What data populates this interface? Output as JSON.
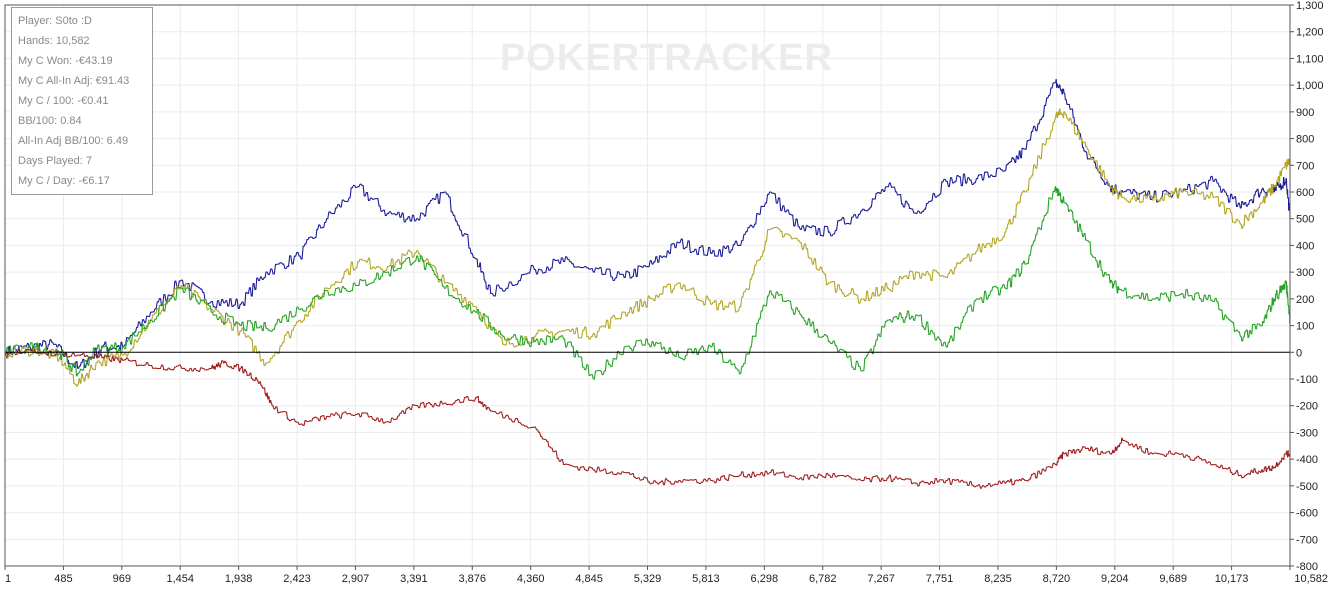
{
  "watermark": "POKERTRACKER",
  "stats": {
    "player": "Player: S0to :D",
    "hands": "Hands: 10,582",
    "won": "My C Won: -€43.19",
    "allin_adj": "My C All-In Adj: €91.43",
    "per100": "My C / 100: -€0.41",
    "bb100": "BB/100: 0.84",
    "allin_bb100": "All-In Adj BB/100: 6.49",
    "days": "Days Played: 7",
    "per_day": "My C / Day: -€6.17"
  },
  "colors": {
    "blue": "#1c1c9a",
    "gold": "#b3a624",
    "green": "#26a326",
    "red": "#a01e1e",
    "grid": "#ebebeb",
    "zero": "#000000"
  },
  "chart_data": {
    "type": "line",
    "xlim": [
      1,
      10582
    ],
    "ylim": [
      -800,
      1300
    ],
    "x_ticks": [
      "1",
      "485",
      "969",
      "1,454",
      "1,938",
      "2,423",
      "2,907",
      "3,391",
      "3,876",
      "4,360",
      "4,845",
      "5,329",
      "5,813",
      "6,298",
      "6,782",
      "7,267",
      "7,751",
      "8,235",
      "8,720",
      "9,204",
      "9,689",
      "10,173",
      "10,582"
    ],
    "y_ticks": [
      "1,300",
      "1,200",
      "1,100",
      "1,000",
      "900",
      "800",
      "700",
      "600",
      "500",
      "400",
      "300",
      "200",
      "100",
      "0",
      "-100",
      "-200",
      "-300",
      "-400",
      "-500",
      "-600",
      "-700",
      "-800"
    ],
    "grid": true,
    "series": [
      {
        "color": "blue",
        "x": [
          1,
          200,
          400,
          600,
          800,
          969,
          1200,
          1454,
          1700,
          1938,
          2150,
          2423,
          2650,
          2907,
          3150,
          3391,
          3620,
          3876,
          4000,
          4360,
          4600,
          4845,
          5100,
          5329,
          5550,
          5813,
          6050,
          6298,
          6550,
          6782,
          7050,
          7267,
          7500,
          7751,
          8000,
          8235,
          8400,
          8650,
          8720,
          8900,
          9100,
          9204,
          9450,
          9689,
          9950,
          10173,
          10350,
          10450,
          10550,
          10582
        ],
        "y": [
          0,
          20,
          30,
          -60,
          20,
          20,
          150,
          270,
          190,
          180,
          300,
          360,
          500,
          620,
          520,
          500,
          600,
          350,
          220,
          310,
          340,
          300,
          280,
          330,
          410,
          370,
          400,
          600,
          460,
          450,
          530,
          620,
          520,
          640,
          650,
          680,
          760,
          1010,
          970,
          750,
          620,
          600,
          580,
          600,
          640,
          540,
          610,
          600,
          650,
          500
        ]
      },
      {
        "color": "gold",
        "x": [
          1,
          250,
          450,
          600,
          750,
          969,
          1200,
          1454,
          1700,
          1938,
          2150,
          2423,
          2650,
          2907,
          3150,
          3391,
          3620,
          3876,
          4100,
          4360,
          4600,
          4845,
          5100,
          5329,
          5550,
          5813,
          6050,
          6298,
          6550,
          6782,
          7050,
          7267,
          7500,
          7751,
          8000,
          8235,
          8400,
          8650,
          8720,
          8900,
          9100,
          9204,
          9450,
          9689,
          9950,
          10173,
          10350,
          10450,
          10550,
          10582
        ],
        "y": [
          0,
          10,
          -20,
          -120,
          -40,
          -10,
          120,
          250,
          160,
          80,
          -40,
          120,
          240,
          340,
          320,
          380,
          260,
          170,
          30,
          60,
          80,
          70,
          150,
          200,
          260,
          180,
          170,
          460,
          410,
          260,
          200,
          240,
          300,
          280,
          380,
          450,
          600,
          880,
          900,
          770,
          620,
          580,
          570,
          600,
          580,
          480,
          560,
          620,
          700,
          720
        ]
      },
      {
        "color": "green",
        "x": [
          1,
          250,
          450,
          600,
          750,
          969,
          1200,
          1454,
          1700,
          1938,
          2150,
          2423,
          2650,
          2907,
          3150,
          3391,
          3620,
          3876,
          4100,
          4360,
          4600,
          4845,
          5100,
          5329,
          5550,
          5813,
          6050,
          6298,
          6550,
          6782,
          7050,
          7267,
          7500,
          7751,
          8000,
          8235,
          8400,
          8650,
          8720,
          8900,
          9100,
          9204,
          9450,
          9689,
          9950,
          10173,
          10350,
          10450,
          10550,
          10582
        ],
        "y": [
          0,
          20,
          0,
          -80,
          10,
          20,
          120,
          240,
          150,
          100,
          90,
          160,
          230,
          250,
          300,
          360,
          240,
          150,
          60,
          40,
          50,
          -100,
          20,
          40,
          -20,
          20,
          -80,
          230,
          140,
          40,
          -70,
          120,
          140,
          20,
          200,
          240,
          330,
          620,
          560,
          420,
          260,
          230,
          200,
          220,
          190,
          60,
          100,
          200,
          260,
          120
        ]
      },
      {
        "color": "red",
        "x": [
          1,
          300,
          600,
          800,
          969,
          1200,
          1454,
          1700,
          1800,
          1938,
          2100,
          2200,
          2423,
          2650,
          2907,
          3150,
          3391,
          3620,
          3876,
          4000,
          4360,
          4600,
          4845,
          5100,
          5329,
          5550,
          5813,
          6050,
          6298,
          6550,
          6782,
          7050,
          7267,
          7500,
          7751,
          8000,
          8235,
          8400,
          8650,
          8720,
          8900,
          9100,
          9204,
          9450,
          9689,
          9950,
          10173,
          10350,
          10450,
          10550,
          10582
        ],
        "y": [
          0,
          0,
          -10,
          -20,
          -30,
          -50,
          -60,
          -60,
          -40,
          -60,
          -110,
          -200,
          -270,
          -240,
          -230,
          -260,
          -200,
          -190,
          -170,
          -220,
          -280,
          -420,
          -440,
          -450,
          -490,
          -480,
          -480,
          -460,
          -450,
          -470,
          -460,
          -480,
          -470,
          -490,
          -480,
          -500,
          -490,
          -480,
          -420,
          -380,
          -360,
          -380,
          -330,
          -380,
          -380,
          -420,
          -460,
          -440,
          -430,
          -380,
          -380
        ]
      }
    ]
  }
}
